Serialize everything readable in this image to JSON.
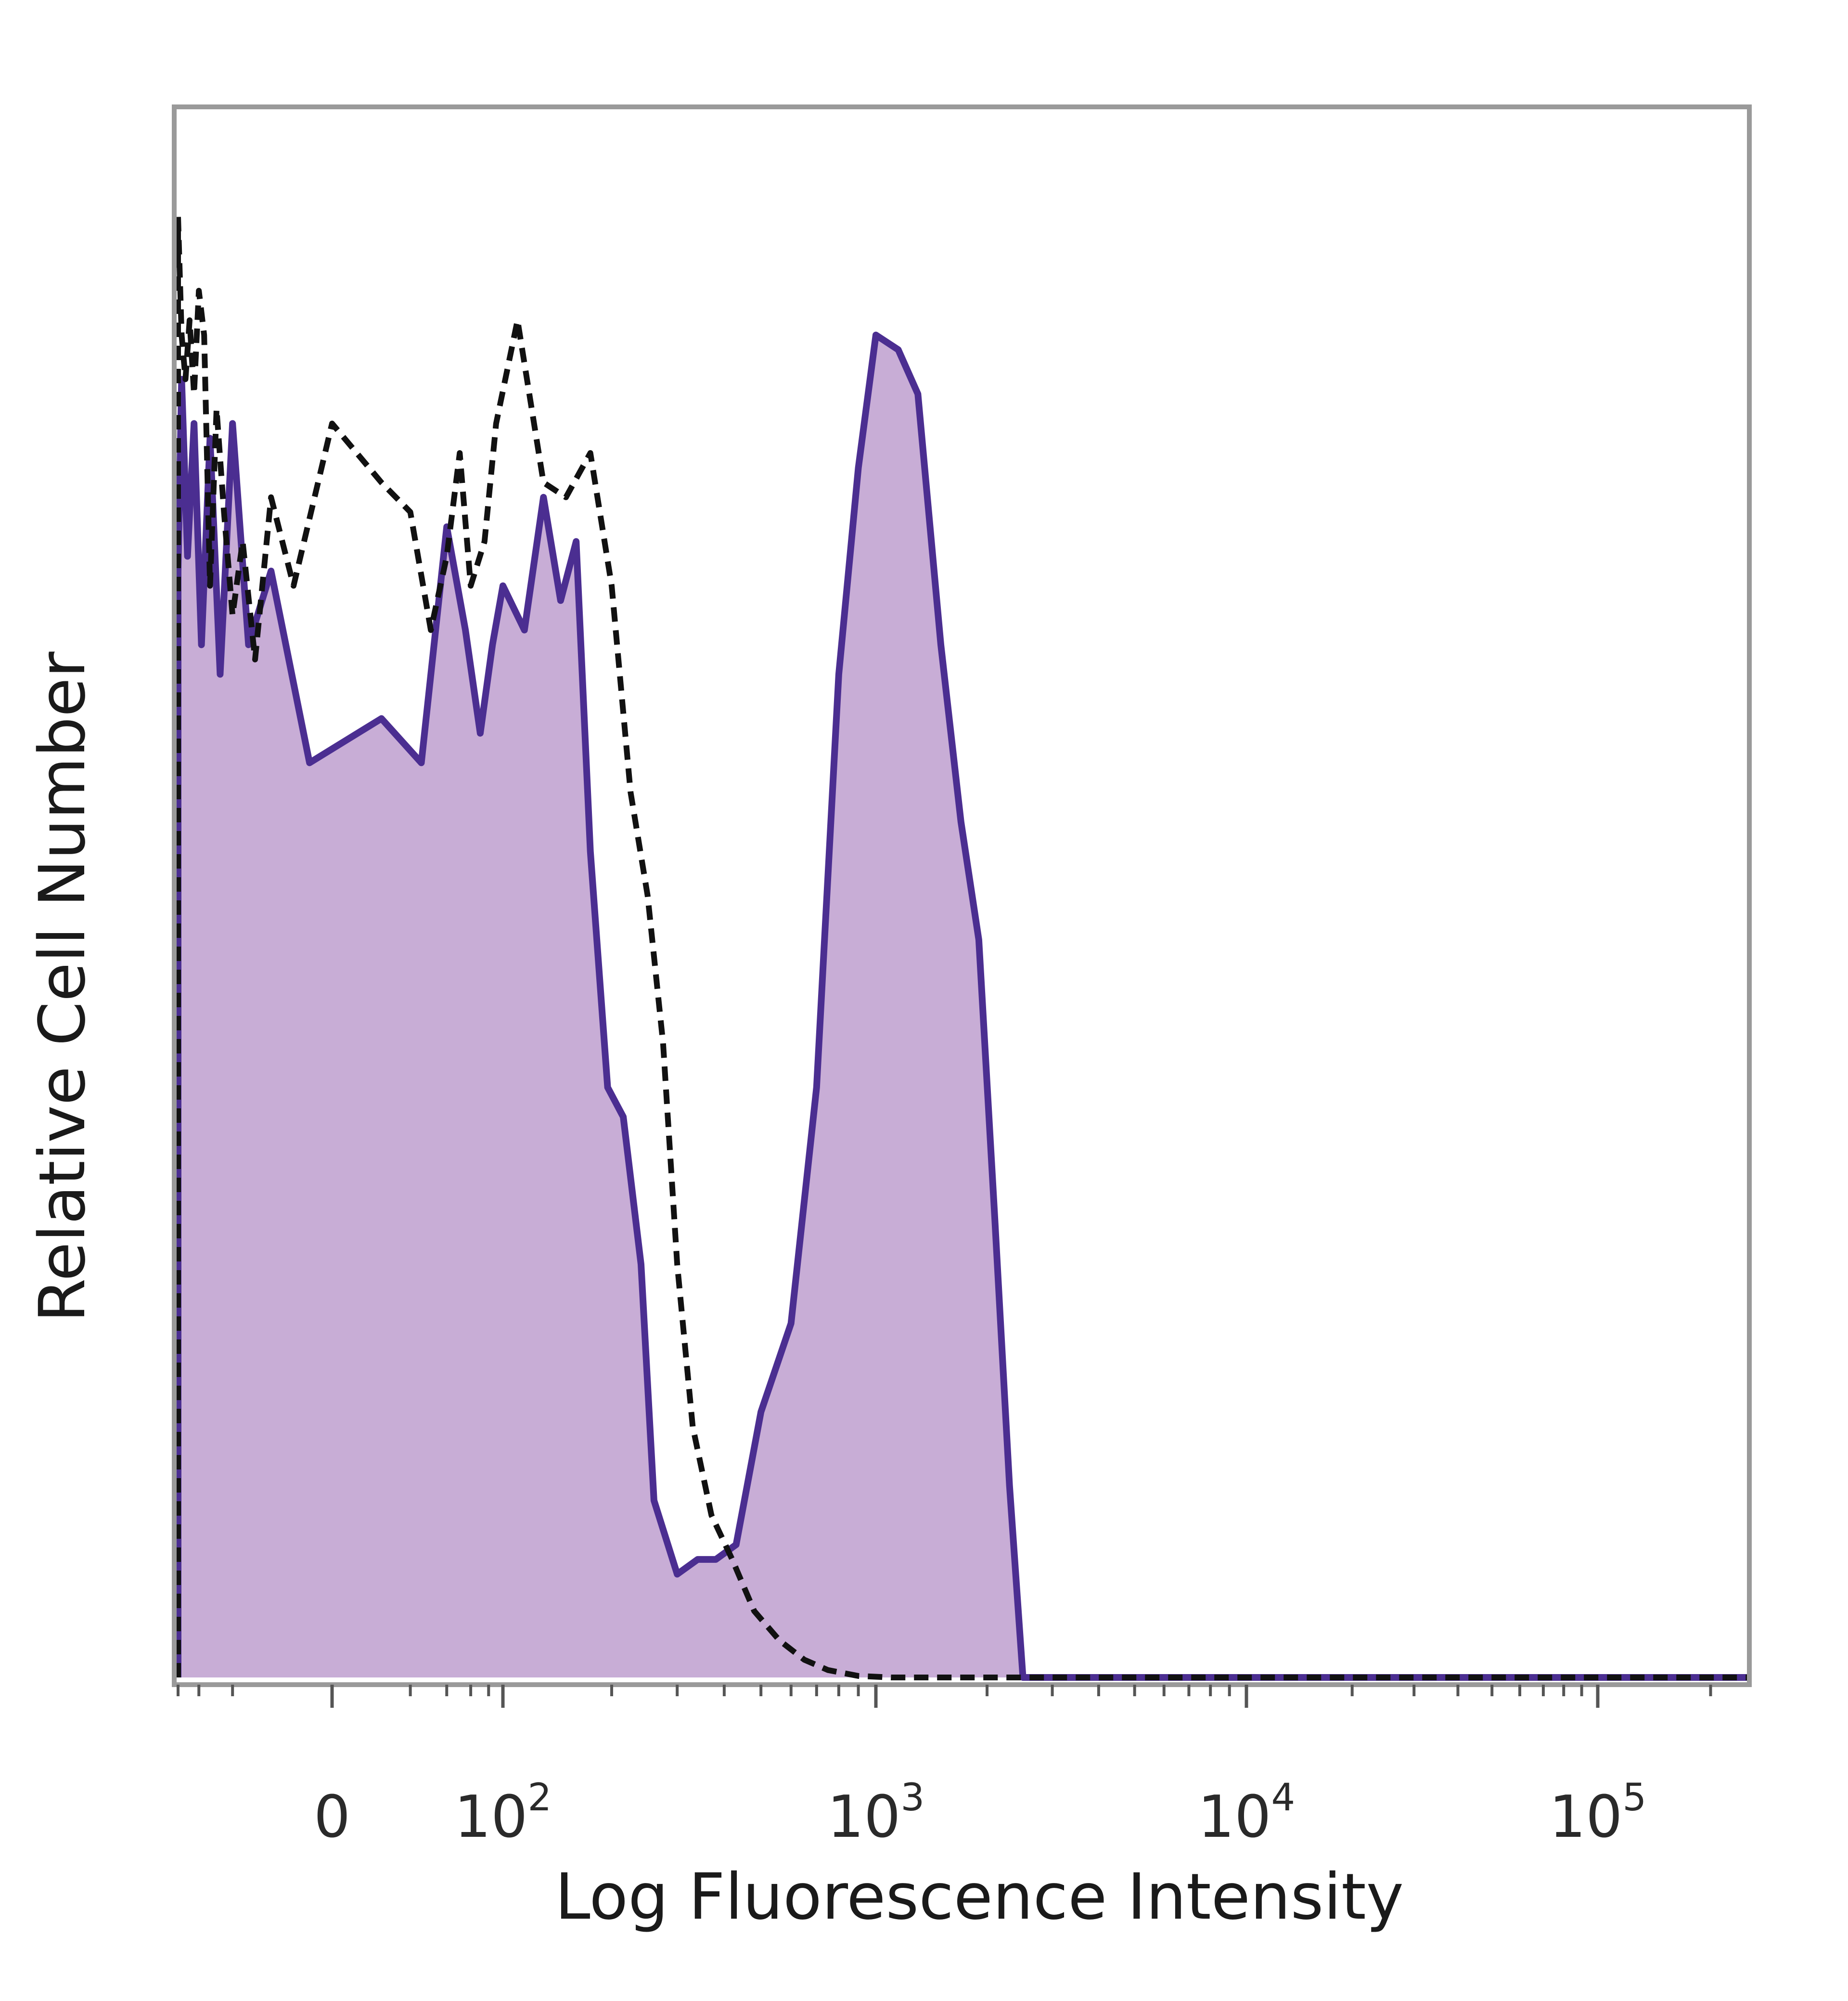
{
  "chart_data": {
    "type": "area",
    "title": "",
    "xlabel": "Log Fluorescence Intensity",
    "ylabel": "Relative Cell Number",
    "x_scale": "biexponential",
    "x_ticks": [
      {
        "value": 0,
        "base": "0",
        "exp": ""
      },
      {
        "value": 100,
        "base": "10",
        "exp": "2"
      },
      {
        "value": 1000,
        "base": "10",
        "exp": "3"
      },
      {
        "value": 10000,
        "base": "10",
        "exp": "4"
      },
      {
        "value": 100000,
        "base": "10",
        "exp": "5"
      }
    ],
    "y_ticks": [],
    "xlim": [
      -150,
      250000
    ],
    "ylim": [
      0,
      100
    ],
    "grid": false,
    "legend": "none",
    "colors": {
      "stained_line": "#4b2e91",
      "stained_fill": "#c8add6",
      "control_line": "#111111",
      "frame": "#9a9a9a",
      "ticks": "#555555"
    },
    "series": [
      {
        "style": "filled-solid",
        "x": [
          -150,
          -140,
          -125,
          -110,
          -95,
          -80,
          -65,
          -50,
          -35,
          -20,
          -5,
          10,
          25,
          40,
          55,
          70,
          85,
          100,
          115,
          130,
          145,
          160,
          175,
          195,
          215,
          240,
          260,
          300,
          340,
          380,
          430,
          500,
          600,
          700,
          800,
          900,
          1000,
          1150,
          1300,
          1500,
          1700,
          1900,
          2100,
          2300,
          2500,
          2700,
          2900,
          3100,
          3300,
          3600,
          4000,
          4500,
          5000,
          5500,
          6000,
          7000,
          8000,
          9000,
          10000,
          15000,
          30000,
          60000,
          120000,
          250000
        ],
        "y": [
          75,
          88,
          76,
          85,
          70,
          84,
          68,
          85,
          70,
          75,
          62,
          65,
          62,
          78,
          71,
          64,
          70,
          74,
          71,
          80,
          73,
          77,
          56,
          40,
          38,
          28,
          12,
          7,
          8,
          8,
          9,
          18,
          24,
          40,
          68,
          82,
          91,
          90,
          87,
          70,
          58,
          50,
          31,
          13,
          0,
          0,
          0,
          0,
          0,
          0,
          0,
          0,
          0,
          0,
          0,
          0,
          0,
          0,
          0,
          0,
          0,
          0,
          0,
          0
        ]
      },
      {
        "style": "dashed",
        "x": [
          -150,
          -140,
          -130,
          -120,
          -110,
          -100,
          -90,
          -80,
          -70,
          -60,
          -50,
          -40,
          -30,
          -20,
          -10,
          0,
          10,
          20,
          30,
          40,
          50,
          60,
          75,
          90,
          110,
          130,
          150,
          175,
          200,
          225,
          250,
          275,
          300,
          330,
          370,
          420,
          480,
          560,
          650,
          750,
          900,
          1100,
          1500,
          2000,
          3000,
          5000,
          10000,
          30000,
          100000,
          250000
        ],
        "y": [
          99,
          91,
          88,
          92,
          87,
          94,
          91,
          74,
          86,
          79,
          72,
          77,
          69,
          80,
          74,
          85,
          81,
          79,
          71,
          76,
          83,
          74,
          77,
          85,
          92,
          81,
          80,
          83,
          74,
          60,
          53,
          43,
          28,
          17,
          11,
          8,
          4.5,
          2.5,
          1.2,
          0.5,
          0.1,
          0,
          0,
          0,
          0,
          0,
          0,
          0,
          0,
          0
        ]
      }
    ]
  }
}
